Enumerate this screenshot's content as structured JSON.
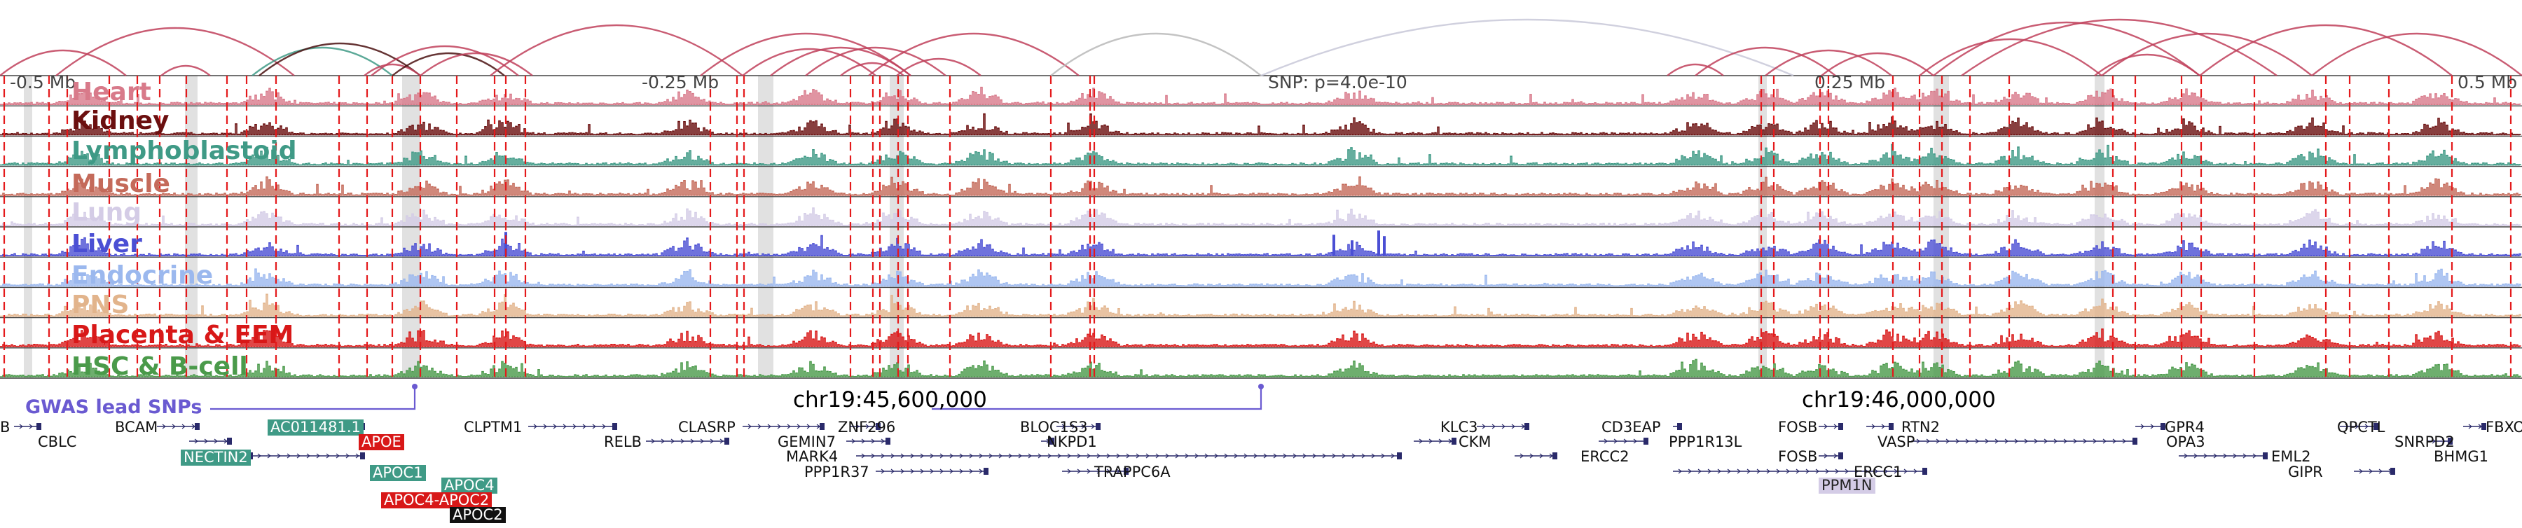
{
  "tracks": [
    {
      "key": "heart",
      "name": "Heart",
      "color": "#d87a8a"
    },
    {
      "key": "kidney",
      "name": "Kidney",
      "color": "#6b0f0f"
    },
    {
      "key": "lympho",
      "name": "Lymphoblastoid",
      "color": "#3f9a86"
    },
    {
      "key": "muscle",
      "name": "Muscle",
      "color": "#c46a5a"
    },
    {
      "key": "lung",
      "name": "Lung",
      "color": "#d4cce6"
    },
    {
      "key": "liver",
      "name": "Liver",
      "color": "#4b4fd4"
    },
    {
      "key": "endocrine",
      "name": "Endocrine",
      "color": "#9bb8ee"
    },
    {
      "key": "pns",
      "name": "PNS",
      "color": "#e2b48c"
    },
    {
      "key": "placenta",
      "name": "Placenta & EEM",
      "color": "#d81818"
    },
    {
      "key": "hsc",
      "name": "HSC & B-cell",
      "color": "#4a9a4a"
    }
  ],
  "scale": {
    "left": "-0.5 Mb",
    "midleft": "-0.25 Mb",
    "snp": "SNP: p=4.0e-10",
    "midright": "0.25 Mb",
    "right": "0.5 Mb"
  },
  "coords": [
    "chr19:45,600,000",
    "chr19:46,000,000"
  ],
  "gwas_label": "GWAS lead SNPs",
  "genes": [
    {
      "name": "B"
    },
    {
      "name": "CBLC"
    },
    {
      "name": "BCAM"
    },
    {
      "name": "AC011481.1",
      "bg": "#3f9a86"
    },
    {
      "name": "APOE",
      "bg": "#d81818"
    },
    {
      "name": "NECTIN2",
      "bg": "#3f9a86"
    },
    {
      "name": "APOC1",
      "bg": "#3f9a86"
    },
    {
      "name": "APOC4",
      "bg": "#3f9a86"
    },
    {
      "name": "APOC4-APOC2",
      "bg": "#d81818"
    },
    {
      "name": "APOC2",
      "bg": "#111111"
    },
    {
      "name": "CLPTM1"
    },
    {
      "name": "RELB"
    },
    {
      "name": "CLASRP"
    },
    {
      "name": "GEMIN7"
    },
    {
      "name": "ZNF296"
    },
    {
      "name": "MARK4"
    },
    {
      "name": "PPP1R37"
    },
    {
      "name": "BLOC1S3"
    },
    {
      "name": "NKPD1"
    },
    {
      "name": "TRAPPC6A"
    },
    {
      "name": "KLC3"
    },
    {
      "name": "CKM"
    },
    {
      "name": "CD3EAP"
    },
    {
      "name": "ERCC2"
    },
    {
      "name": "PPP1R13L"
    },
    {
      "name": "FOSB"
    },
    {
      "name": "FOSB"
    },
    {
      "name": "RTN2"
    },
    {
      "name": "VASP"
    },
    {
      "name": "ERCC1"
    },
    {
      "name": "PPM1N",
      "bg": "#d4cce6",
      "fg": "#222"
    },
    {
      "name": "GPR4"
    },
    {
      "name": "OPA3"
    },
    {
      "name": "EML2"
    },
    {
      "name": "GIPR"
    },
    {
      "name": "QPCTL"
    },
    {
      "name": "SNRPD2"
    },
    {
      "name": "FBXO"
    },
    {
      "name": "BHMG1"
    }
  ],
  "colors": {
    "arc": "#c0405a",
    "arc_dark": "#4a1010",
    "arc_green": "#3f9a86",
    "dash": "#e41a1c",
    "highlight": "#c8c8c8",
    "gene_line": "#2a2a6a"
  }
}
